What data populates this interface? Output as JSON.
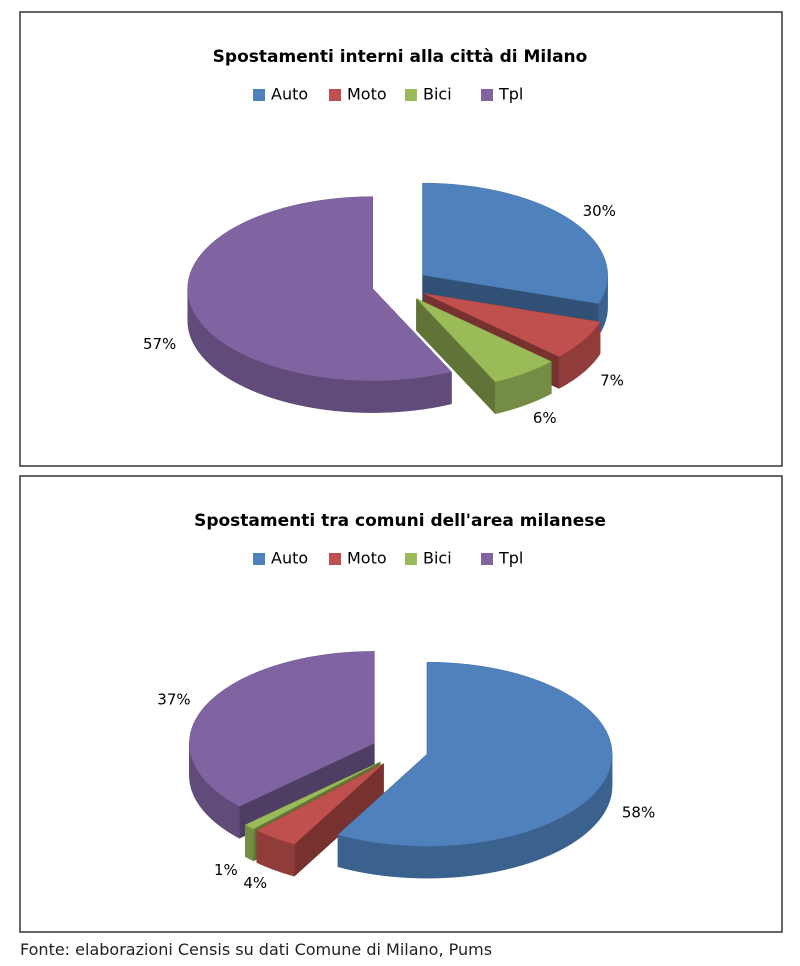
{
  "chart_data": [
    {
      "type": "pie3d",
      "title": "Spostamenti interni alla città di Milano",
      "categories": [
        "Auto",
        "Moto",
        "Bici",
        "Tpl"
      ],
      "values": [
        30,
        7,
        6,
        57
      ],
      "value_labels": [
        "30%",
        "7%",
        "6%",
        "57%"
      ],
      "colors": [
        "#4f81bd",
        "#c0504d",
        "#9bbb59",
        "#8064a2"
      ],
      "legend": "top"
    },
    {
      "type": "pie3d",
      "title": "Spostamenti  tra comuni dell'area milanese",
      "categories": [
        "Auto",
        "Moto",
        "Bici",
        "Tpl"
      ],
      "values": [
        58,
        4,
        1,
        37
      ],
      "value_labels": [
        "58%",
        "4%",
        "1%",
        "37%"
      ],
      "colors": [
        "#4f81bd",
        "#c0504d",
        "#9bbb59",
        "#8064a2"
      ],
      "legend": "top"
    }
  ],
  "source": "Fonte: elaborazioni Censis su dati Comune di Milano, Pums"
}
